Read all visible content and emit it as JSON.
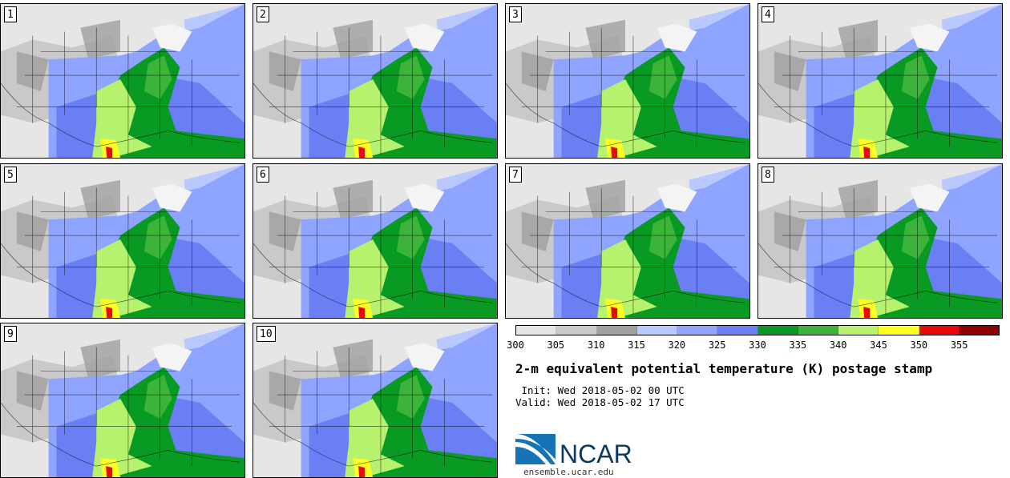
{
  "panels": [
    {
      "label": "1"
    },
    {
      "label": "2"
    },
    {
      "label": "3"
    },
    {
      "label": "4"
    },
    {
      "label": "5"
    },
    {
      "label": "6"
    },
    {
      "label": "7"
    },
    {
      "label": "8"
    },
    {
      "label": "9"
    },
    {
      "label": "10"
    }
  ],
  "colorbar": {
    "colors": [
      "#e6e6e6",
      "#c9c9c9",
      "#a0a0a0",
      "#b9c8ff",
      "#8fa4ff",
      "#6b7ff5",
      "#089a23",
      "#3cb43a",
      "#b7f26e",
      "#ffff22",
      "#e60a0a",
      "#8b0000"
    ],
    "ticks": [
      "300",
      "305",
      "310",
      "315",
      "320",
      "325",
      "330",
      "335",
      "340",
      "345",
      "350",
      "355"
    ]
  },
  "title": "2-m equivalent potential temperature (K) postage stamp",
  "init": " Init: Wed 2018-05-02 00 UTC",
  "valid": "Valid: Wed 2018-05-02 17 UTC",
  "logo": {
    "word": "NCAR",
    "url": "ensemble.ucar.edu"
  }
}
